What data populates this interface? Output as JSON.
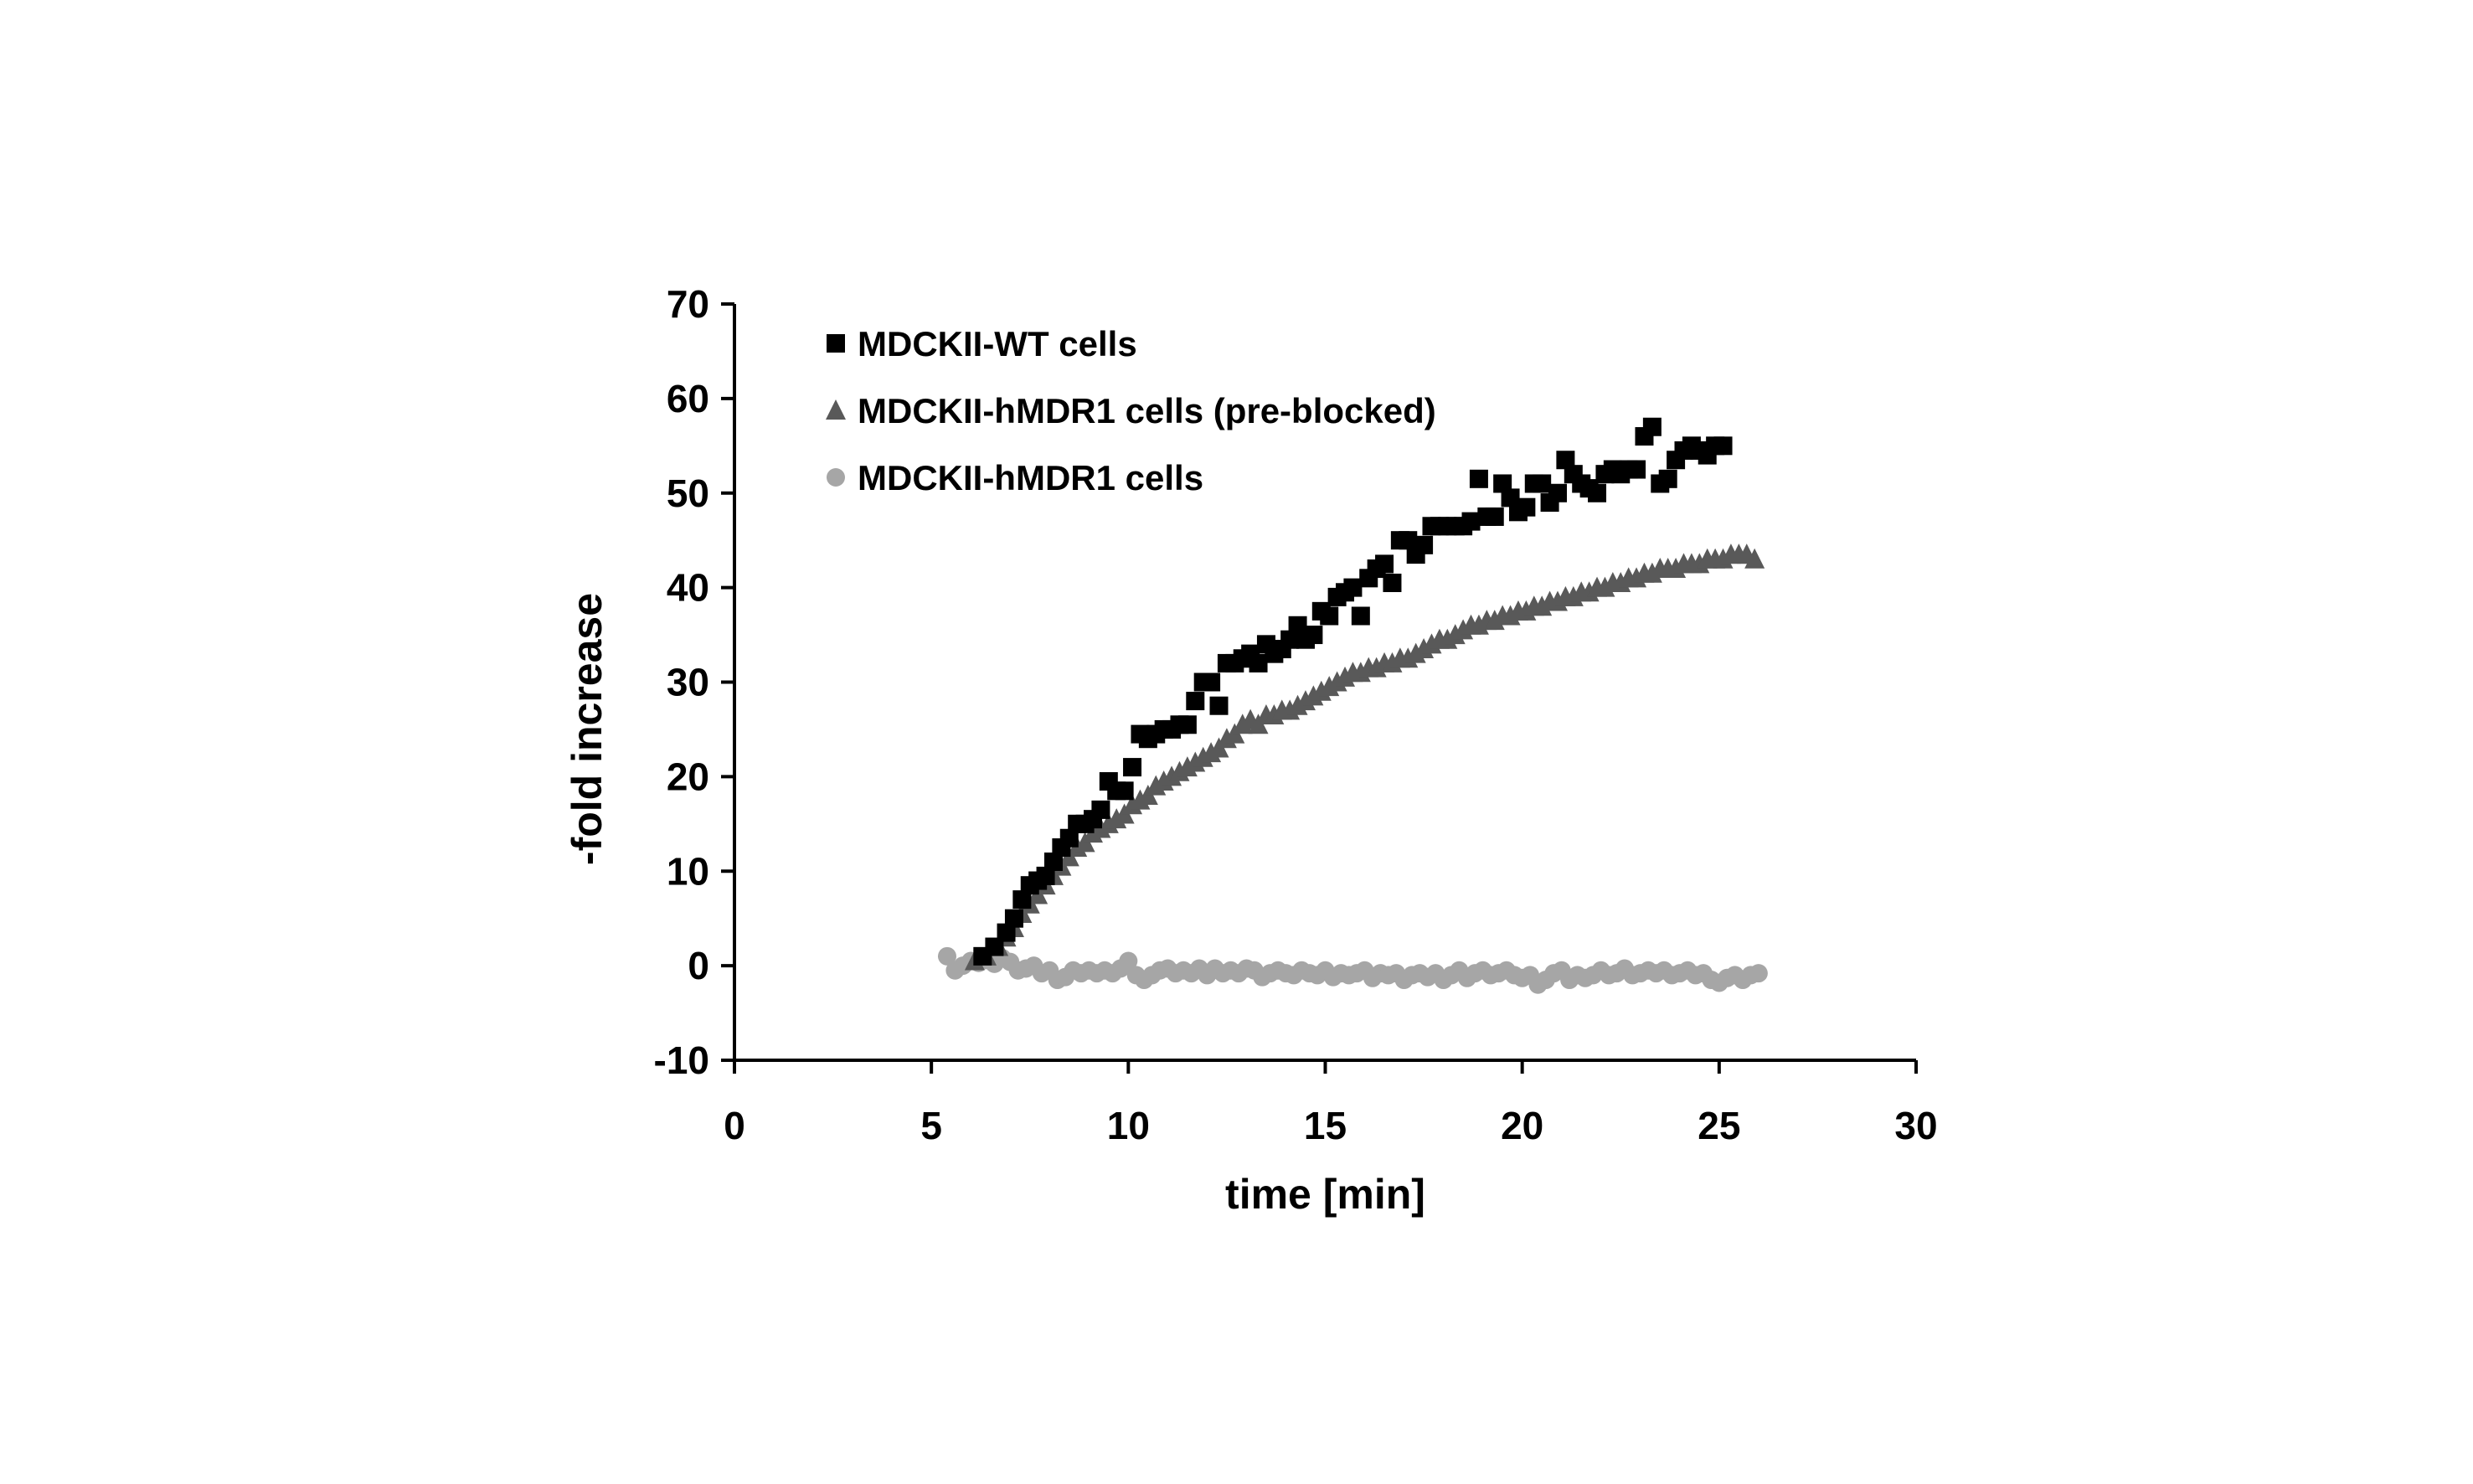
{
  "chart_data": {
    "type": "scatter",
    "title": "",
    "xlabel": "time [min]",
    "ylabel": "-fold increase",
    "xlim": [
      0,
      30
    ],
    "ylim": [
      -10,
      70
    ],
    "xticks": [
      0,
      5,
      10,
      15,
      20,
      25,
      30
    ],
    "yticks": [
      -10,
      0,
      10,
      20,
      30,
      40,
      50,
      60,
      70
    ],
    "grid": false,
    "legend_position": "top-left",
    "series": [
      {
        "name": "MDCKII-WT cells",
        "marker": "square",
        "color": "#000000",
        "x": [
          6.3,
          6.6,
          6.9,
          7.1,
          7.3,
          7.5,
          7.7,
          7.9,
          8.1,
          8.3,
          8.5,
          8.7,
          8.9,
          9.1,
          9.3,
          9.5,
          9.7,
          9.9,
          10.1,
          10.3,
          10.5,
          10.7,
          10.9,
          11.1,
          11.3,
          11.5,
          11.7,
          11.9,
          12.1,
          12.3,
          12.5,
          12.7,
          12.9,
          13.1,
          13.3,
          13.5,
          13.7,
          13.9,
          14.1,
          14.3,
          14.5,
          14.7,
          14.9,
          15.1,
          15.3,
          15.5,
          15.7,
          15.9,
          16.1,
          16.3,
          16.5,
          16.7,
          16.9,
          17.1,
          17.3,
          17.5,
          17.7,
          17.9,
          18.1,
          18.3,
          18.5,
          18.7,
          18.9,
          19.1,
          19.3,
          19.5,
          19.7,
          19.9,
          20.1,
          20.3,
          20.5,
          20.7,
          20.9,
          21.1,
          21.3,
          21.5,
          21.7,
          21.9,
          22.1,
          22.3,
          22.5,
          22.7,
          22.9,
          23.1,
          23.3,
          23.5,
          23.7,
          23.9,
          24.1,
          24.3,
          24.5,
          24.7,
          24.9,
          25.1
        ],
        "y": [
          1.0,
          2.0,
          3.5,
          5.0,
          7.0,
          8.5,
          9.0,
          9.5,
          11.0,
          12.5,
          13.5,
          15.0,
          15.0,
          15.5,
          16.5,
          19.5,
          18.5,
          18.5,
          21.0,
          24.5,
          24.0,
          24.5,
          25.0,
          25.0,
          25.5,
          25.5,
          28.0,
          30.0,
          30.0,
          27.5,
          32.0,
          32.0,
          32.5,
          33.0,
          32.0,
          34.0,
          33.0,
          33.5,
          34.5,
          36.0,
          34.5,
          35.0,
          37.5,
          37.0,
          39.0,
          39.5,
          40.0,
          37.0,
          41.0,
          42.0,
          42.5,
          40.5,
          45.0,
          45.0,
          43.5,
          44.5,
          46.5,
          46.5,
          46.5,
          46.5,
          46.5,
          47.0,
          51.5,
          47.5,
          47.5,
          51.0,
          49.5,
          48.0,
          48.5,
          51.0,
          51.0,
          49.0,
          50.0,
          53.5,
          52.0,
          51.0,
          50.5,
          50.0,
          52.0,
          52.5,
          52.0,
          52.5,
          52.5,
          56.0,
          57.0,
          51.0,
          51.5,
          53.5,
          54.5,
          55.0,
          54.5,
          54.0,
          55.0,
          55.0
        ]
      },
      {
        "name": "MDCKII-hMDR1 cells (pre-blocked)",
        "marker": "triangle",
        "color": "#595959",
        "x": [
          6.1,
          6.4,
          6.7,
          6.9,
          7.1,
          7.3,
          7.5,
          7.7,
          7.9,
          8.1,
          8.3,
          8.5,
          8.7,
          8.9,
          9.1,
          9.3,
          9.5,
          9.7,
          9.9,
          10.1,
          10.3,
          10.5,
          10.7,
          10.9,
          11.1,
          11.3,
          11.5,
          11.7,
          11.9,
          12.1,
          12.3,
          12.5,
          12.7,
          12.9,
          13.1,
          13.3,
          13.5,
          13.7,
          13.9,
          14.1,
          14.3,
          14.5,
          14.7,
          14.9,
          15.1,
          15.3,
          15.5,
          15.7,
          15.9,
          16.1,
          16.3,
          16.5,
          16.7,
          16.9,
          17.1,
          17.3,
          17.5,
          17.7,
          17.9,
          18.1,
          18.3,
          18.5,
          18.7,
          18.9,
          19.1,
          19.3,
          19.5,
          19.7,
          19.9,
          20.1,
          20.3,
          20.5,
          20.7,
          20.9,
          21.1,
          21.3,
          21.5,
          21.7,
          21.9,
          22.1,
          22.3,
          22.5,
          22.7,
          22.9,
          23.1,
          23.3,
          23.5,
          23.7,
          23.9,
          24.1,
          24.3,
          24.5,
          24.7,
          24.9,
          25.1,
          25.3,
          25.5,
          25.7,
          25.9
        ],
        "y": [
          0.5,
          1.0,
          2.0,
          3.0,
          4.0,
          5.5,
          6.5,
          7.5,
          8.5,
          9.5,
          10.5,
          11.5,
          12.5,
          13.0,
          14.0,
          14.5,
          15.0,
          15.5,
          16.0,
          17.0,
          17.5,
          18.0,
          19.0,
          19.5,
          20.0,
          20.5,
          21.0,
          21.5,
          22.0,
          22.5,
          23.0,
          24.0,
          24.5,
          25.5,
          26.0,
          25.5,
          26.5,
          26.5,
          27.0,
          27.0,
          27.5,
          28.0,
          28.5,
          29.0,
          29.5,
          30.0,
          30.5,
          31.0,
          31.0,
          31.5,
          31.5,
          32.0,
          32.0,
          32.5,
          32.5,
          33.0,
          33.5,
          34.0,
          34.5,
          34.5,
          35.0,
          35.5,
          36.0,
          36.0,
          36.5,
          36.5,
          37.0,
          37.0,
          37.5,
          37.5,
          38.0,
          38.0,
          38.5,
          38.5,
          39.0,
          39.0,
          39.5,
          39.5,
          40.0,
          40.0,
          40.5,
          40.5,
          41.0,
          41.0,
          41.5,
          41.5,
          42.0,
          42.0,
          42.0,
          42.5,
          42.5,
          42.5,
          43.0,
          43.0,
          43.0,
          43.5,
          43.5,
          43.5,
          43.0
        ]
      },
      {
        "name": "MDCKII-hMDR1 cells",
        "marker": "circle",
        "color": "#A6A6A6",
        "x": [
          5.4,
          5.6,
          5.8,
          6.0,
          6.2,
          6.4,
          6.6,
          6.8,
          7.0,
          7.2,
          7.4,
          7.6,
          7.8,
          8.0,
          8.2,
          8.4,
          8.6,
          8.8,
          9.0,
          9.2,
          9.4,
          9.6,
          9.8,
          10.0,
          10.2,
          10.4,
          10.6,
          10.8,
          11.0,
          11.2,
          11.4,
          11.6,
          11.8,
          12.0,
          12.2,
          12.4,
          12.6,
          12.8,
          13.0,
          13.2,
          13.4,
          13.6,
          13.8,
          14.0,
          14.2,
          14.4,
          14.6,
          14.8,
          15.0,
          15.2,
          15.4,
          15.6,
          15.8,
          16.0,
          16.2,
          16.4,
          16.6,
          16.8,
          17.0,
          17.2,
          17.4,
          17.6,
          17.8,
          18.0,
          18.2,
          18.4,
          18.6,
          18.8,
          19.0,
          19.2,
          19.4,
          19.6,
          19.8,
          20.0,
          20.2,
          20.4,
          20.6,
          20.8,
          21.0,
          21.2,
          21.4,
          21.6,
          21.8,
          22.0,
          22.2,
          22.4,
          22.6,
          22.8,
          23.0,
          23.2,
          23.4,
          23.6,
          23.8,
          24.0,
          24.2,
          24.4,
          24.6,
          24.8,
          25.0,
          25.2,
          25.4,
          25.6,
          25.8,
          26.0
        ],
        "y": [
          1.0,
          -0.5,
          0.0,
          0.5,
          0.3,
          0.6,
          0.2,
          0.8,
          0.4,
          -0.5,
          -0.3,
          0.0,
          -0.8,
          -0.5,
          -1.5,
          -1.2,
          -0.5,
          -0.8,
          -0.5,
          -0.8,
          -0.5,
          -0.8,
          -0.3,
          0.5,
          -1.0,
          -1.5,
          -1.0,
          -0.5,
          -0.3,
          -0.8,
          -0.5,
          -0.8,
          -0.3,
          -1.0,
          -0.3,
          -0.8,
          -0.5,
          -0.8,
          -0.3,
          -0.5,
          -1.2,
          -0.8,
          -0.5,
          -0.8,
          -1.0,
          -0.5,
          -0.8,
          -1.0,
          -0.5,
          -1.2,
          -0.8,
          -1.0,
          -0.8,
          -0.5,
          -1.3,
          -0.8,
          -1.0,
          -0.8,
          -1.5,
          -1.0,
          -0.8,
          -1.2,
          -0.8,
          -1.5,
          -1.0,
          -0.5,
          -1.3,
          -0.8,
          -0.5,
          -1.0,
          -0.8,
          -0.5,
          -1.0,
          -1.3,
          -1.0,
          -2.0,
          -1.5,
          -0.8,
          -0.5,
          -1.5,
          -1.0,
          -1.3,
          -1.0,
          -0.5,
          -1.0,
          -0.8,
          -0.3,
          -1.0,
          -0.8,
          -0.5,
          -0.8,
          -0.5,
          -1.0,
          -0.8,
          -0.5,
          -1.0,
          -0.8,
          -1.5,
          -1.8,
          -1.3,
          -1.0,
          -1.5,
          -1.0,
          -0.8
        ]
      }
    ]
  }
}
